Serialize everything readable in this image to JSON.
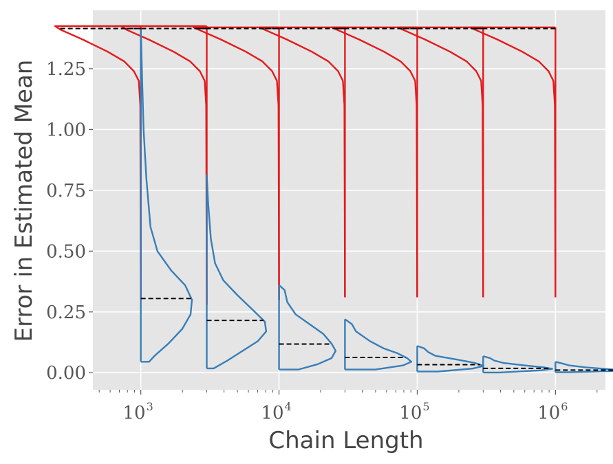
{
  "chart_data": {
    "type": "violin",
    "title": "",
    "xlabel": "Chain Length",
    "ylabel": "Error in Estimated Mean",
    "x_scale": "log",
    "xlim": [
      450,
      2300000
    ],
    "ylim": [
      -0.07,
      1.49
    ],
    "grid": true,
    "legend": "none",
    "x_ticks": [
      {
        "value": 1000,
        "base": "10",
        "exp": "3"
      },
      {
        "value": 10000,
        "base": "10",
        "exp": "4"
      },
      {
        "value": 100000,
        "base": "10",
        "exp": "5"
      },
      {
        "value": 1000000,
        "base": "10",
        "exp": "6"
      }
    ],
    "y_ticks": [
      {
        "value": 0.0,
        "label": "0.00"
      },
      {
        "value": 0.25,
        "label": "0.25"
      },
      {
        "value": 0.5,
        "label": "0.50"
      },
      {
        "value": 0.75,
        "label": "0.75"
      },
      {
        "value": 1.0,
        "label": "1.00"
      },
      {
        "value": 1.25,
        "label": "1.25"
      }
    ],
    "colors": {
      "red": "#e41a1c",
      "blue": "#377eb8",
      "median": "#000000",
      "grid": "#ffffff",
      "background": "#e5e5e5"
    },
    "positions": [
      1000,
      3000,
      10000,
      30000,
      100000,
      300000,
      1000000
    ],
    "red_series": [
      {
        "position": 1000,
        "y_min": 0.3,
        "y_max": 1.425,
        "median": 1.415,
        "profile": [
          [
            1.425,
            0.62
          ],
          [
            1.41,
            0.58
          ],
          [
            1.37,
            0.42
          ],
          [
            1.32,
            0.24
          ],
          [
            1.28,
            0.12
          ],
          [
            1.24,
            0.05
          ],
          [
            1.2,
            0.015
          ],
          [
            1.1,
            0.004
          ],
          [
            0.3,
            0.0
          ]
        ]
      },
      {
        "position": 3000,
        "y_min": 0.28,
        "y_max": 1.425,
        "median": 1.415,
        "profile": [
          [
            1.425,
            0.62
          ],
          [
            1.41,
            0.58
          ],
          [
            1.37,
            0.42
          ],
          [
            1.32,
            0.24
          ],
          [
            1.28,
            0.12
          ],
          [
            1.24,
            0.05
          ],
          [
            1.2,
            0.015
          ],
          [
            1.1,
            0.004
          ],
          [
            0.28,
            0.0
          ]
        ]
      },
      {
        "position": 10000,
        "y_min": 0.3,
        "y_max": 1.42,
        "median": 1.415,
        "profile": [
          [
            1.42,
            0.62
          ],
          [
            1.41,
            0.58
          ],
          [
            1.37,
            0.42
          ],
          [
            1.32,
            0.24
          ],
          [
            1.28,
            0.12
          ],
          [
            1.24,
            0.05
          ],
          [
            1.2,
            0.015
          ],
          [
            1.1,
            0.004
          ],
          [
            0.3,
            0.0
          ]
        ]
      },
      {
        "position": 30000,
        "y_min": 0.31,
        "y_max": 1.42,
        "median": 1.415,
        "profile": [
          [
            1.42,
            0.62
          ],
          [
            1.41,
            0.58
          ],
          [
            1.37,
            0.42
          ],
          [
            1.32,
            0.24
          ],
          [
            1.28,
            0.12
          ],
          [
            1.24,
            0.05
          ],
          [
            1.2,
            0.015
          ],
          [
            1.1,
            0.004
          ],
          [
            0.31,
            0.0
          ]
        ]
      },
      {
        "position": 100000,
        "y_min": 0.31,
        "y_max": 1.42,
        "median": 1.415,
        "profile": [
          [
            1.42,
            0.62
          ],
          [
            1.41,
            0.58
          ],
          [
            1.37,
            0.42
          ],
          [
            1.32,
            0.24
          ],
          [
            1.28,
            0.12
          ],
          [
            1.24,
            0.05
          ],
          [
            1.2,
            0.015
          ],
          [
            1.1,
            0.004
          ],
          [
            0.31,
            0.0
          ]
        ]
      },
      {
        "position": 300000,
        "y_min": 0.31,
        "y_max": 1.42,
        "median": 1.415,
        "profile": [
          [
            1.42,
            0.62
          ],
          [
            1.41,
            0.58
          ],
          [
            1.37,
            0.42
          ],
          [
            1.32,
            0.24
          ],
          [
            1.28,
            0.12
          ],
          [
            1.24,
            0.05
          ],
          [
            1.2,
            0.015
          ],
          [
            1.1,
            0.004
          ],
          [
            0.31,
            0.0
          ]
        ]
      },
      {
        "position": 1000000,
        "y_min": 0.31,
        "y_max": 1.42,
        "median": 1.415,
        "profile": [
          [
            1.42,
            0.62
          ],
          [
            1.41,
            0.58
          ],
          [
            1.37,
            0.42
          ],
          [
            1.32,
            0.24
          ],
          [
            1.28,
            0.12
          ],
          [
            1.24,
            0.05
          ],
          [
            1.2,
            0.015
          ],
          [
            1.1,
            0.004
          ],
          [
            0.31,
            0.0
          ]
        ]
      }
    ],
    "blue_series": [
      {
        "position": 1000,
        "y_min": 0.045,
        "y_max": 1.41,
        "median": 0.305,
        "profile": [
          [
            1.41,
            0.0
          ],
          [
            1.2,
            0.01
          ],
          [
            1.0,
            0.02
          ],
          [
            0.8,
            0.04
          ],
          [
            0.6,
            0.07
          ],
          [
            0.5,
            0.12
          ],
          [
            0.42,
            0.22
          ],
          [
            0.36,
            0.32
          ],
          [
            0.3,
            0.37
          ],
          [
            0.24,
            0.36
          ],
          [
            0.18,
            0.3
          ],
          [
            0.12,
            0.2
          ],
          [
            0.07,
            0.1
          ],
          [
            0.045,
            0.06
          ]
        ]
      },
      {
        "position": 3000,
        "y_min": 0.018,
        "y_max": 0.815,
        "median": 0.215,
        "profile": [
          [
            0.815,
            0.0
          ],
          [
            0.7,
            0.01
          ],
          [
            0.55,
            0.03
          ],
          [
            0.45,
            0.06
          ],
          [
            0.38,
            0.12
          ],
          [
            0.32,
            0.22
          ],
          [
            0.26,
            0.33
          ],
          [
            0.21,
            0.42
          ],
          [
            0.17,
            0.43
          ],
          [
            0.13,
            0.37
          ],
          [
            0.09,
            0.26
          ],
          [
            0.05,
            0.15
          ],
          [
            0.018,
            0.05
          ]
        ]
      },
      {
        "position": 10000,
        "y_min": 0.013,
        "y_max": 0.36,
        "median": 0.118,
        "profile": [
          [
            0.36,
            0.0
          ],
          [
            0.34,
            0.04
          ],
          [
            0.29,
            0.06
          ],
          [
            0.24,
            0.12
          ],
          [
            0.2,
            0.22
          ],
          [
            0.16,
            0.32
          ],
          [
            0.12,
            0.38
          ],
          [
            0.09,
            0.41
          ],
          [
            0.06,
            0.38
          ],
          [
            0.035,
            0.28
          ],
          [
            0.013,
            0.14
          ]
        ]
      },
      {
        "position": 30000,
        "y_min": 0.013,
        "y_max": 0.22,
        "median": 0.063,
        "profile": [
          [
            0.22,
            0.0
          ],
          [
            0.2,
            0.05
          ],
          [
            0.17,
            0.08
          ],
          [
            0.13,
            0.18
          ],
          [
            0.1,
            0.28
          ],
          [
            0.08,
            0.38
          ],
          [
            0.06,
            0.45
          ],
          [
            0.045,
            0.48
          ],
          [
            0.03,
            0.42
          ],
          [
            0.013,
            0.22
          ]
        ]
      },
      {
        "position": 100000,
        "y_min": 0.005,
        "y_max": 0.11,
        "median": 0.033,
        "profile": [
          [
            0.11,
            0.0
          ],
          [
            0.1,
            0.05
          ],
          [
            0.085,
            0.08
          ],
          [
            0.07,
            0.13
          ],
          [
            0.055,
            0.28
          ],
          [
            0.04,
            0.42
          ],
          [
            0.028,
            0.48
          ],
          [
            0.017,
            0.4
          ],
          [
            0.005,
            0.15
          ]
        ]
      },
      {
        "position": 300000,
        "y_min": 0.001,
        "y_max": 0.068,
        "median": 0.018,
        "profile": [
          [
            0.068,
            0.0
          ],
          [
            0.06,
            0.05
          ],
          [
            0.05,
            0.08
          ],
          [
            0.04,
            0.15
          ],
          [
            0.03,
            0.3
          ],
          [
            0.022,
            0.44
          ],
          [
            0.016,
            0.5
          ],
          [
            0.01,
            0.42
          ],
          [
            0.001,
            0.12
          ]
        ]
      },
      {
        "position": 1000000,
        "y_min": 0.002,
        "y_max": 0.045,
        "median": 0.011,
        "profile": [
          [
            0.045,
            0.0
          ],
          [
            0.038,
            0.05
          ],
          [
            0.03,
            0.1
          ],
          [
            0.022,
            0.22
          ],
          [
            0.015,
            0.38
          ],
          [
            0.011,
            0.48
          ],
          [
            0.007,
            0.42
          ],
          [
            0.002,
            0.1
          ]
        ]
      }
    ]
  }
}
